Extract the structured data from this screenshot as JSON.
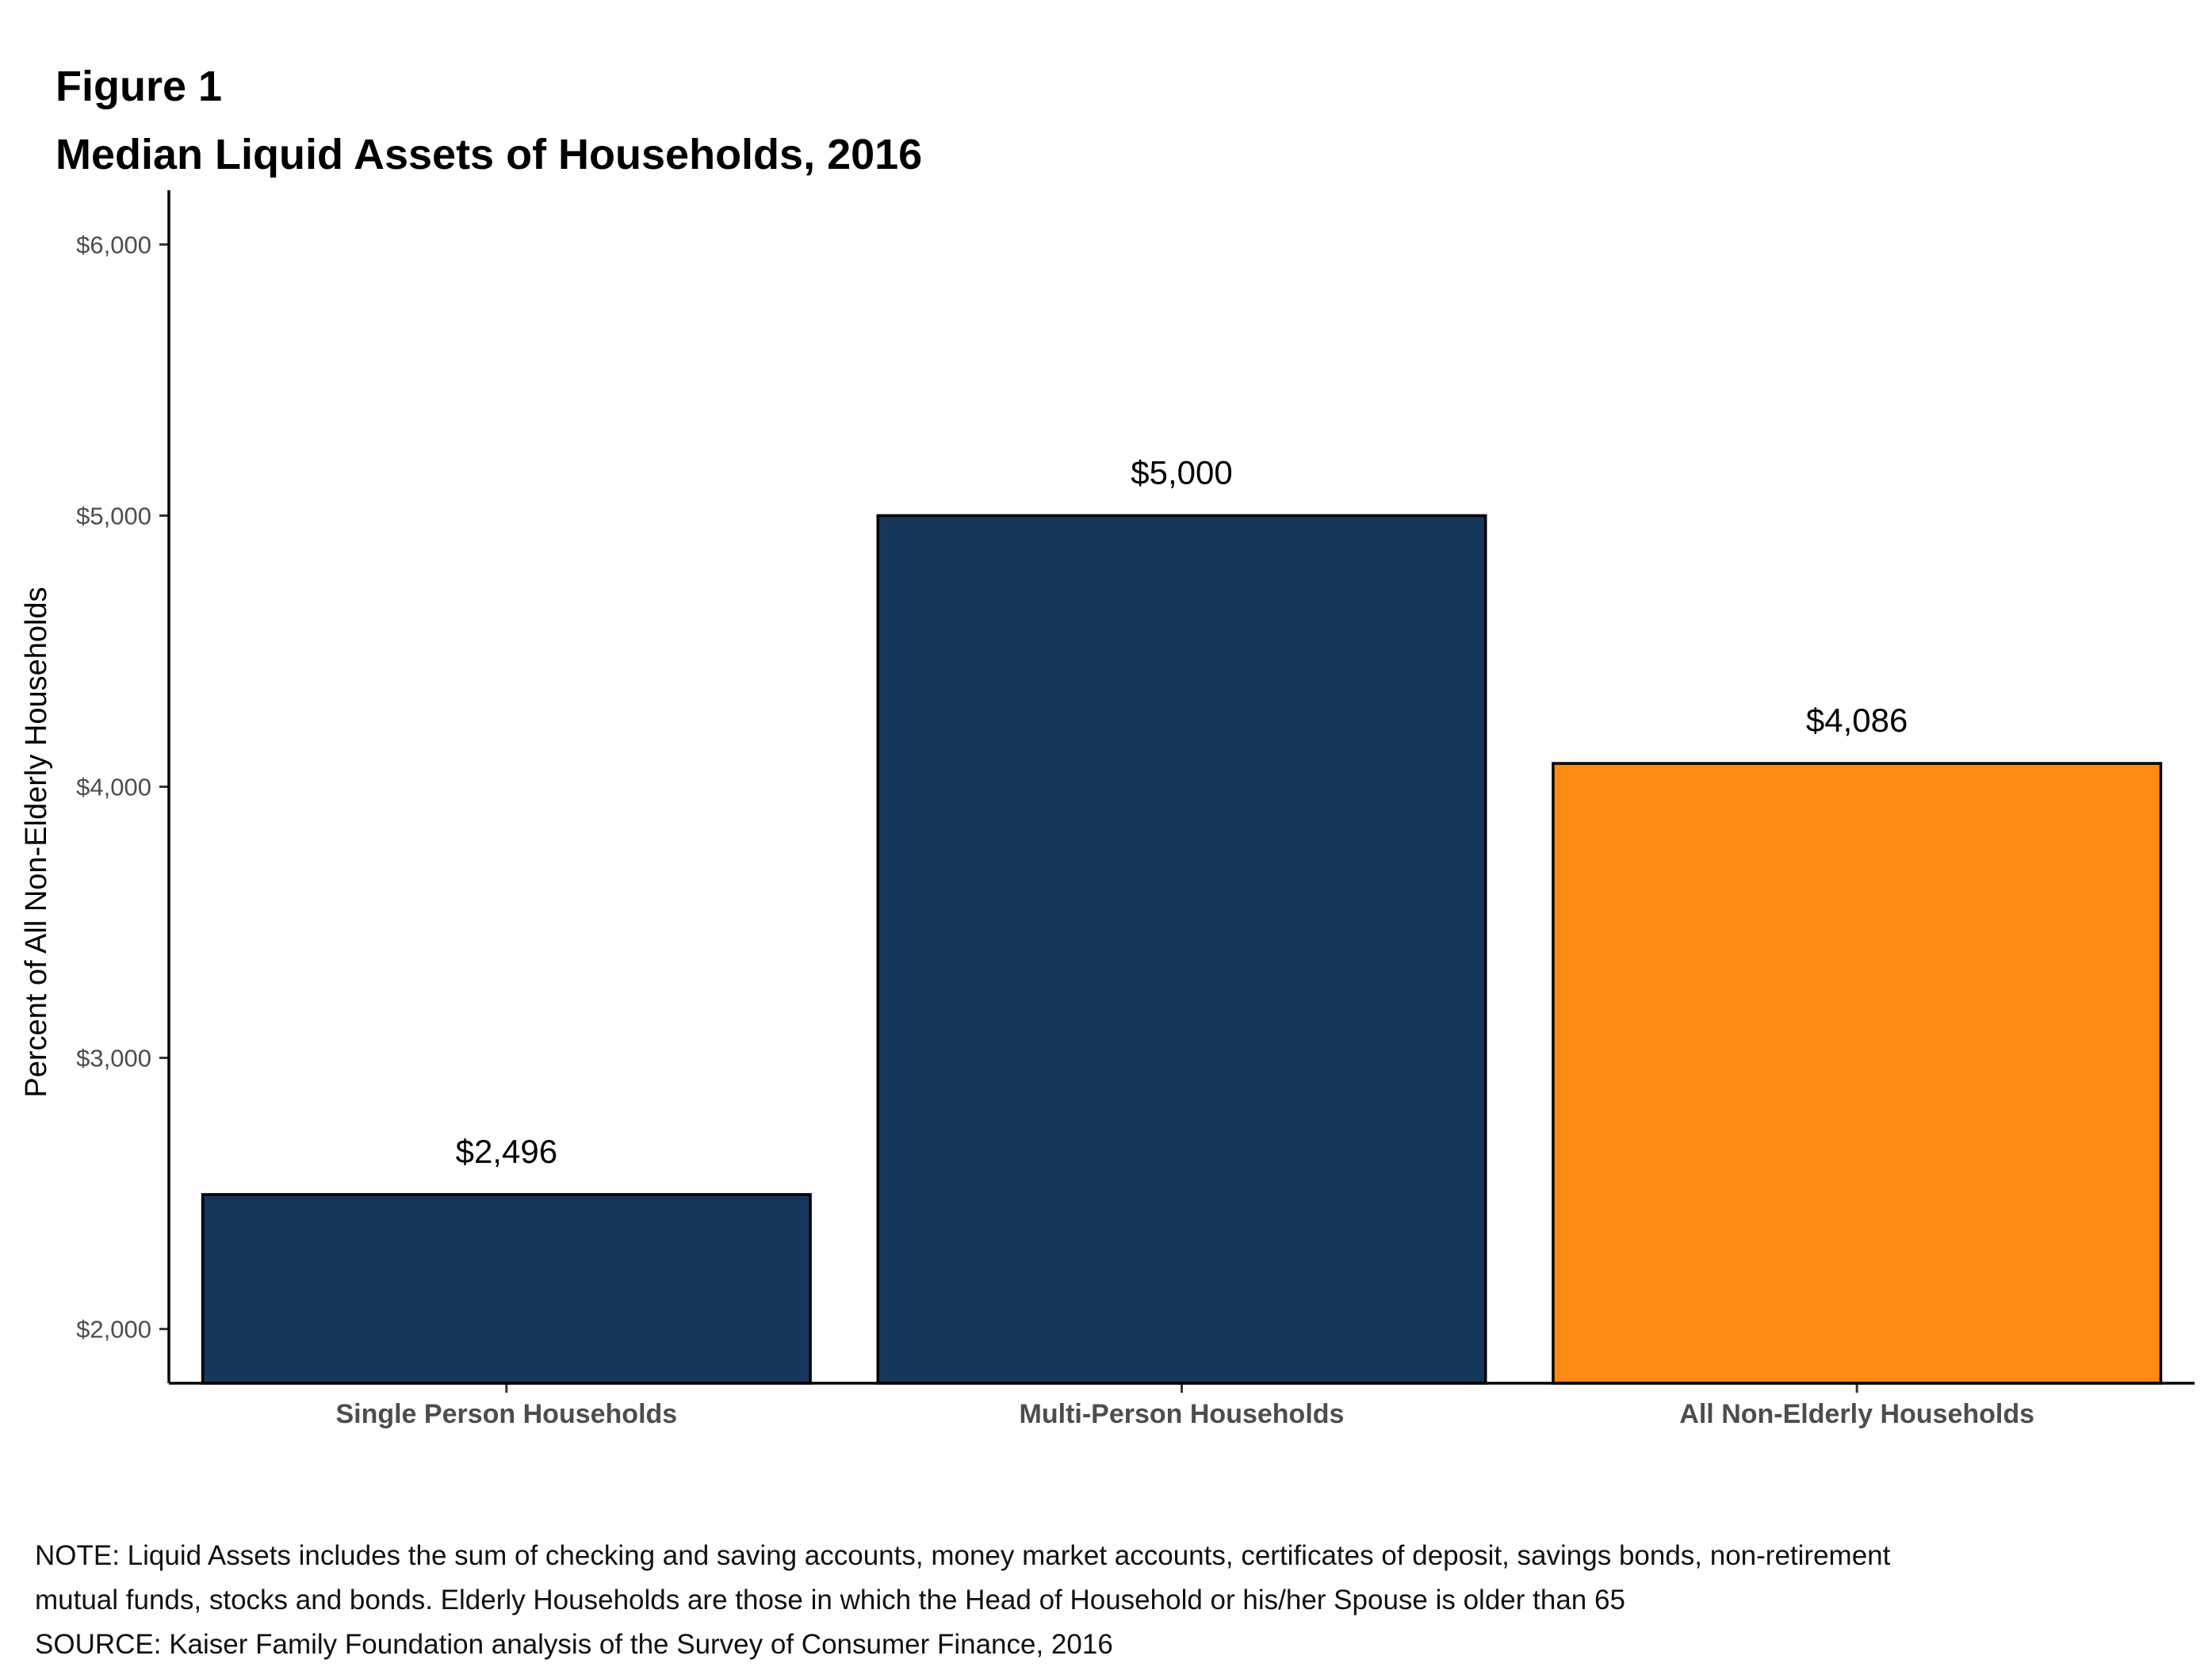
{
  "header": {
    "figure_label": "Figure 1",
    "title": "Median Liquid Assets of Households, 2016"
  },
  "chart_data": {
    "type": "bar",
    "title": "Median Liquid Assets of Households, 2016",
    "xlabel": "",
    "ylabel": "Percent of All Non-Elderly Households",
    "categories": [
      "Single Person Households",
      "Multi-Person Households",
      "All Non-Elderly Households"
    ],
    "values": [
      2496,
      5000,
      4086
    ],
    "data_labels": [
      "$2,496",
      "$5,000",
      "$4,086"
    ],
    "bar_colors": [
      "#16365c",
      "#16365c",
      "#ff8913"
    ],
    "ylim": [
      1800,
      6200
    ],
    "yticks": [
      2000,
      3000,
      4000,
      5000,
      6000
    ],
    "ytick_labels": [
      "$2,000",
      "$3,000",
      "$4,000",
      "$5,000",
      "$6,000"
    ],
    "grid": false,
    "legend": "none"
  },
  "footnotes": {
    "note_line1": "NOTE: Liquid Assets includes the sum of checking and saving accounts, money market accounts, certificates of deposit, savings bonds, non-retirement",
    "note_line2": "mutual funds, stocks and bonds.  Elderly Households are those in which the Head of Household or his/her Spouse is older than 65",
    "source": "SOURCE: Kaiser Family Foundation analysis of the Survey of Consumer Finance, 2016"
  }
}
